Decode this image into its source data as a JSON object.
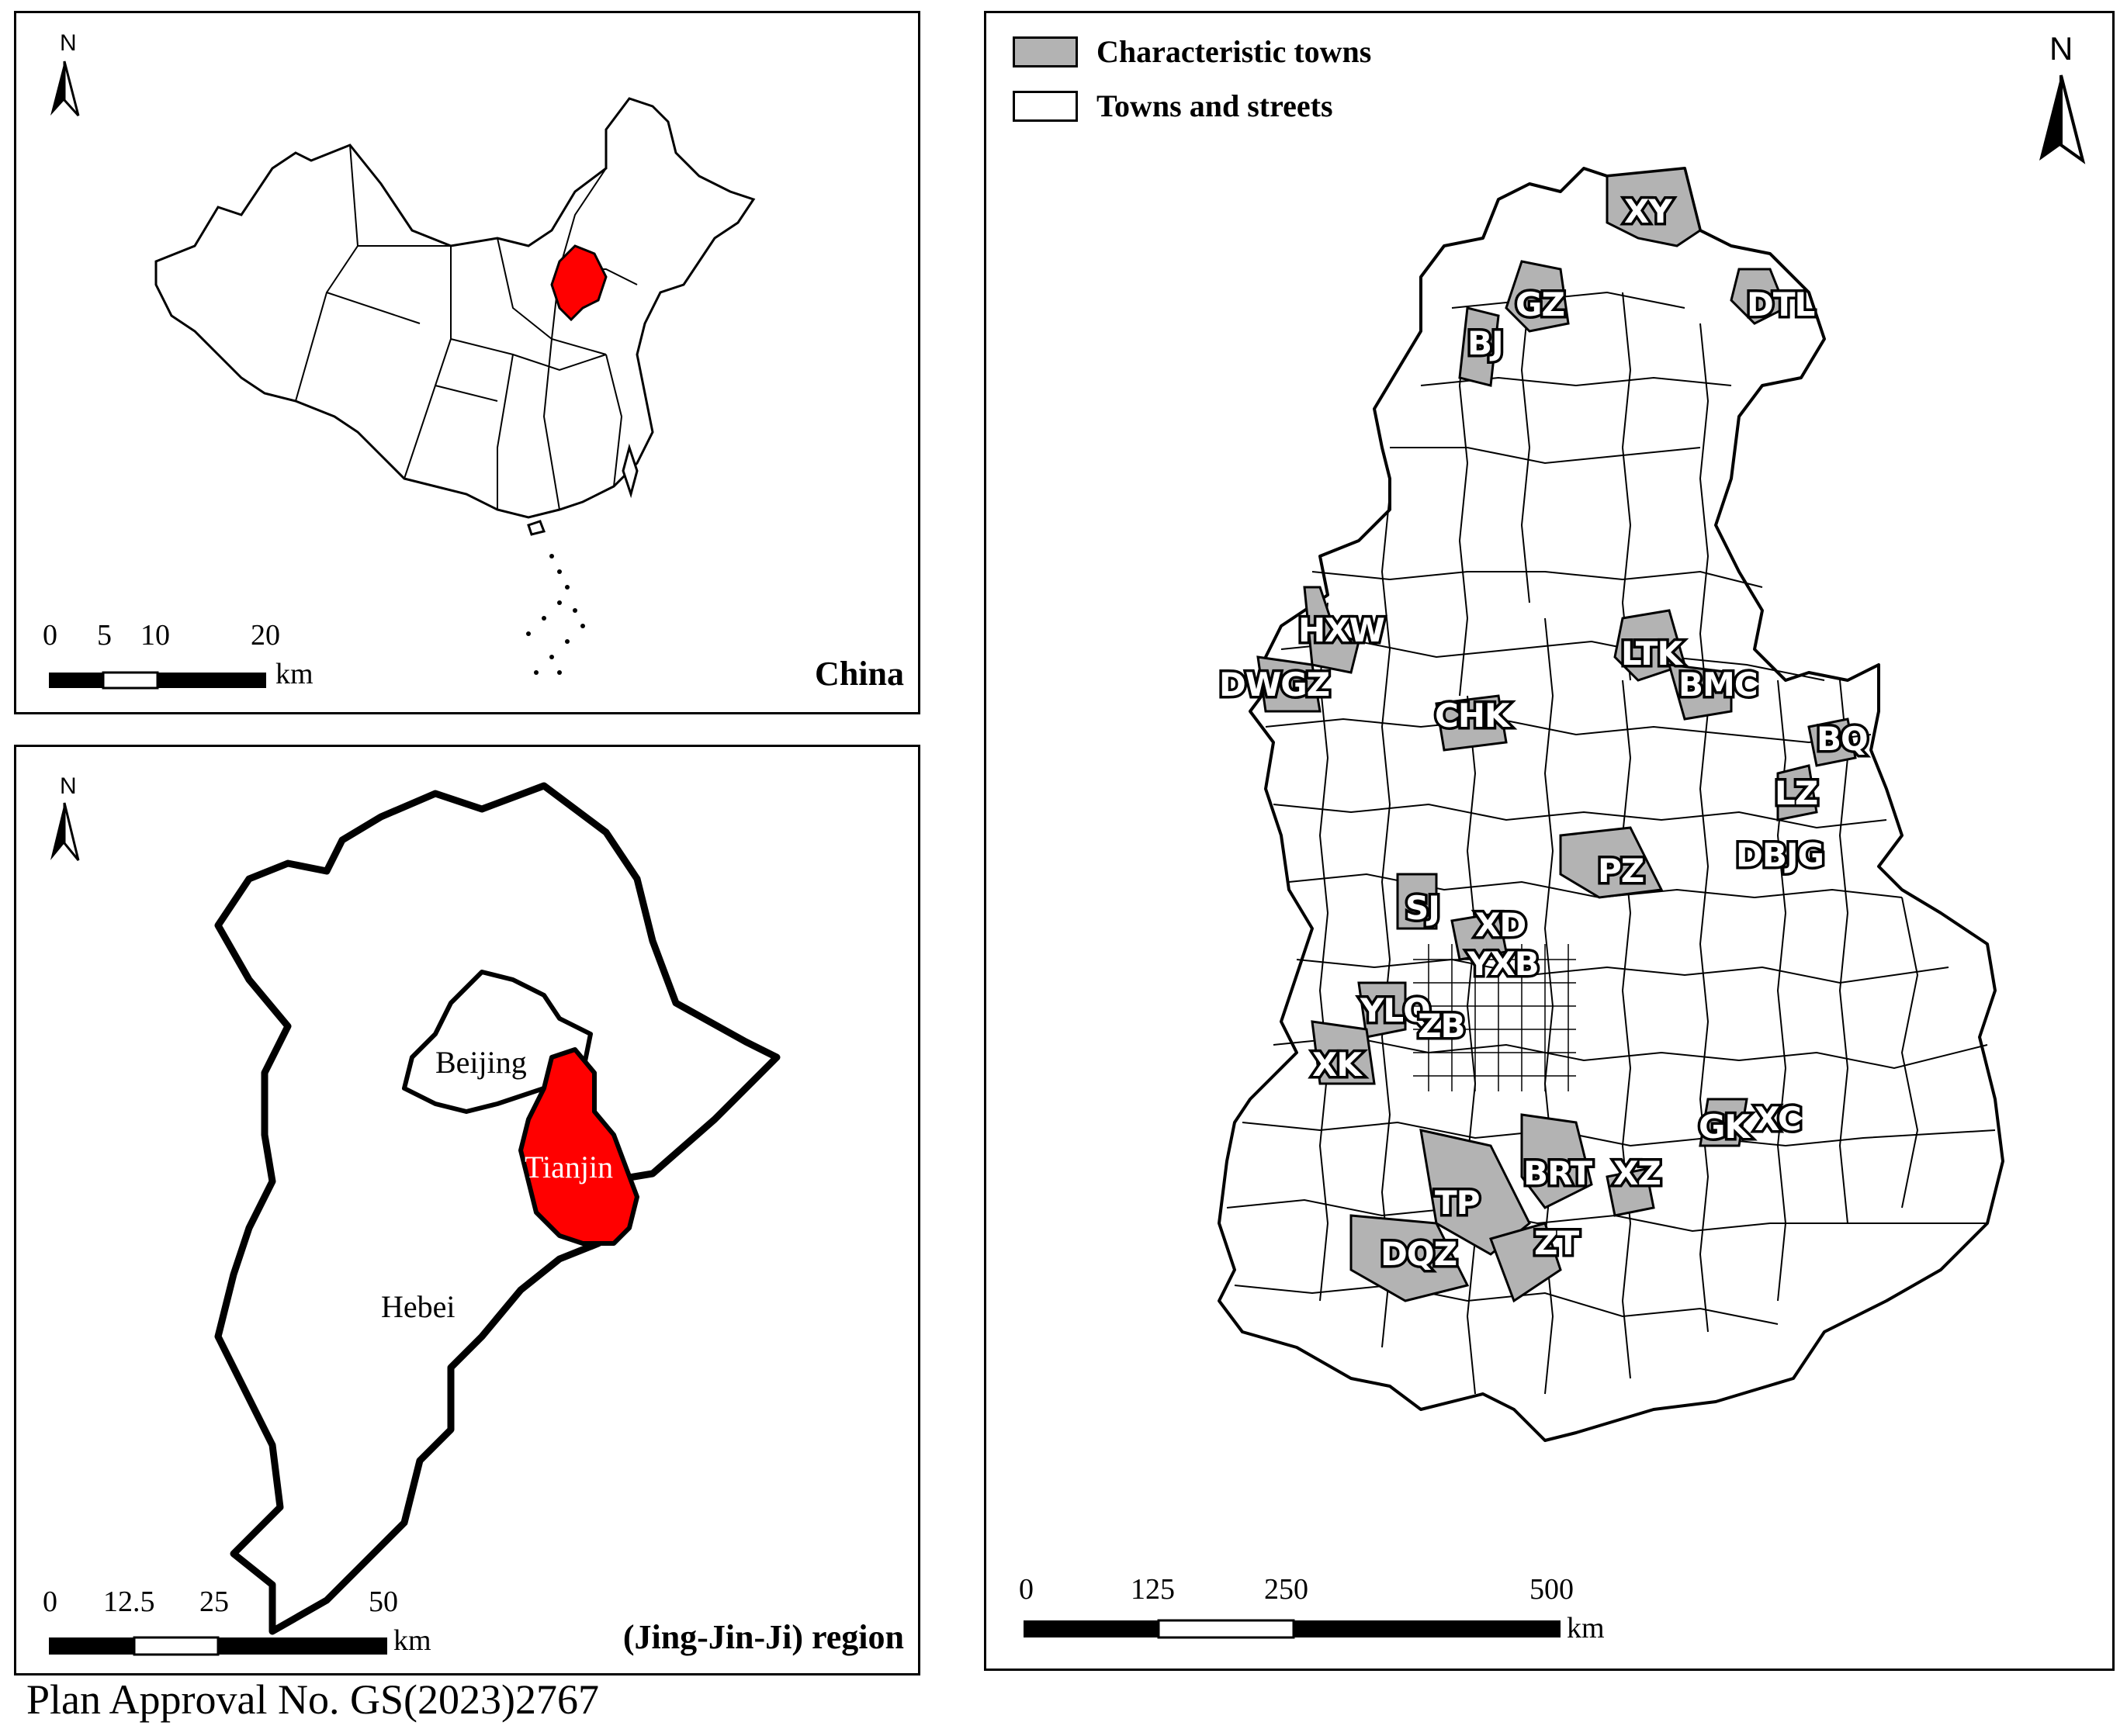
{
  "panels": {
    "china": {
      "title": "China",
      "north": "N",
      "scale": {
        "ticks": [
          "0",
          "5",
          "10",
          "20"
        ],
        "unit": "km"
      },
      "highlight_color": "#ff0000"
    },
    "jjj": {
      "title": "(Jing-Jin-Ji) region",
      "north": "N",
      "scale": {
        "ticks": [
          "0",
          "12.5",
          "25",
          "50"
        ],
        "unit": "km"
      },
      "regions": {
        "beijing": "Beijing",
        "tianjin": "Tianjin",
        "hebei": "Hebei"
      },
      "highlight_color": "#ff0000"
    },
    "tianjin": {
      "north": "N",
      "legend": [
        {
          "label": "Characteristic towns",
          "color": "#b3b3b3"
        },
        {
          "label": "Towns and streets",
          "color": "#ffffff"
        }
      ],
      "scale": {
        "ticks": [
          "0",
          "125",
          "250",
          "500"
        ],
        "unit": "km"
      },
      "town_labels": [
        "XY",
        "GZ",
        "DTL",
        "BJ",
        "HXW",
        "DWGZ",
        "LTK",
        "BMC",
        "CHK",
        "BQ",
        "LZ",
        "DBJG",
        "PZ",
        "SJ",
        "XD",
        "YXB",
        "YLQ",
        "ZB",
        "XK",
        "GK",
        "XC",
        "BRT",
        "XZ",
        "TP",
        "DQZ",
        "ZT"
      ]
    }
  },
  "caption": "Plan Approval No. GS(2023)2767"
}
